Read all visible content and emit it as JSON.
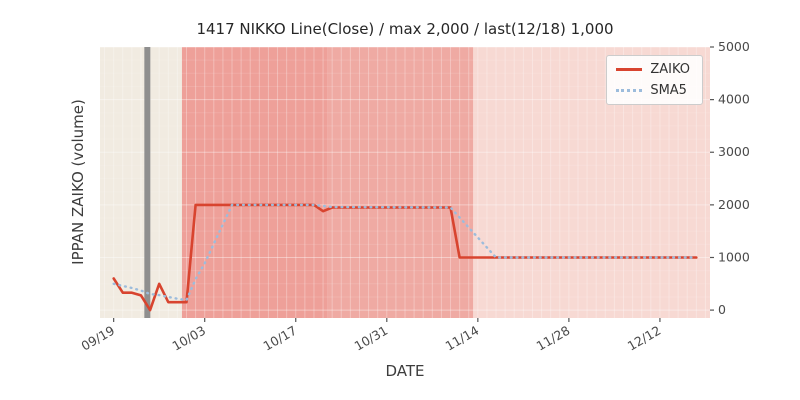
{
  "chart_data": {
    "type": "line",
    "title": "1417 NIKKO Line(Close) / max 2,000 / last(12/18) 1,000",
    "xlabel": "DATE",
    "ylabel": "IPPAN ZAIKO (volume)",
    "x_unit": "trading-day index (0 = 09/19)",
    "x_domain": [
      -1.5,
      65.5
    ],
    "ylim": [
      -150,
      5000
    ],
    "x_ticks": [
      {
        "label": "09/19",
        "x": 0
      },
      {
        "label": "10/03",
        "x": 10
      },
      {
        "label": "10/17",
        "x": 20
      },
      {
        "label": "10/31",
        "x": 30
      },
      {
        "label": "11/14",
        "x": 40
      },
      {
        "label": "11/28",
        "x": 50
      },
      {
        "label": "12/12",
        "x": 60
      }
    ],
    "y_ticks": [
      0,
      1000,
      2000,
      3000,
      4000,
      5000
    ],
    "series": [
      {
        "name": "ZAIKO",
        "color": "#d8442f",
        "style": "solid",
        "max_value": 2000,
        "last_label": "last(12/18) 1,000",
        "points": [
          [
            0,
            600
          ],
          [
            1,
            330
          ],
          [
            2,
            330
          ],
          [
            3,
            280
          ],
          [
            4,
            0
          ],
          [
            5,
            500
          ],
          [
            6,
            150
          ],
          [
            8,
            150
          ],
          [
            9,
            2000
          ],
          [
            22,
            2000
          ],
          [
            23,
            1880
          ],
          [
            24,
            1950
          ],
          [
            37,
            1950
          ],
          [
            38,
            1000
          ],
          [
            64,
            1000
          ]
        ]
      },
      {
        "name": "SMA5",
        "color": "#9cbcdc",
        "style": "dotted",
        "points": [
          [
            0,
            500
          ],
          [
            1,
            460
          ],
          [
            2,
            420
          ],
          [
            3,
            370
          ],
          [
            4,
            306
          ],
          [
            5,
            286
          ],
          [
            6,
            250
          ],
          [
            7,
            216
          ],
          [
            8,
            190
          ],
          [
            9,
            590
          ],
          [
            10,
            890
          ],
          [
            11,
            1260
          ],
          [
            12,
            1630
          ],
          [
            13,
            2000
          ],
          [
            22,
            2000
          ],
          [
            24,
            1960
          ],
          [
            37,
            1950
          ],
          [
            38,
            1760
          ],
          [
            39,
            1570
          ],
          [
            40,
            1380
          ],
          [
            41,
            1190
          ],
          [
            42,
            1000
          ],
          [
            64,
            1000
          ]
        ]
      }
    ],
    "bands": [
      {
        "from": -1.5,
        "to": 7.5,
        "color": "#f1ebe1"
      },
      {
        "from": 7.5,
        "to": 23.5,
        "color": "#eea099"
      },
      {
        "from": 23.5,
        "to": 39.5,
        "color": "#efaaa3"
      },
      {
        "from": 39.5,
        "to": 65.5,
        "color": "#f7d9d3"
      }
    ],
    "vlines": [
      {
        "x": 3.7,
        "color": "#8f8f8f",
        "width": 6
      }
    ],
    "grid": {
      "white_vertical_stripes": true,
      "stripe_color": "#ffffff"
    },
    "legend": {
      "position": "upper right",
      "entries": [
        "ZAIKO",
        "SMA5"
      ]
    }
  }
}
